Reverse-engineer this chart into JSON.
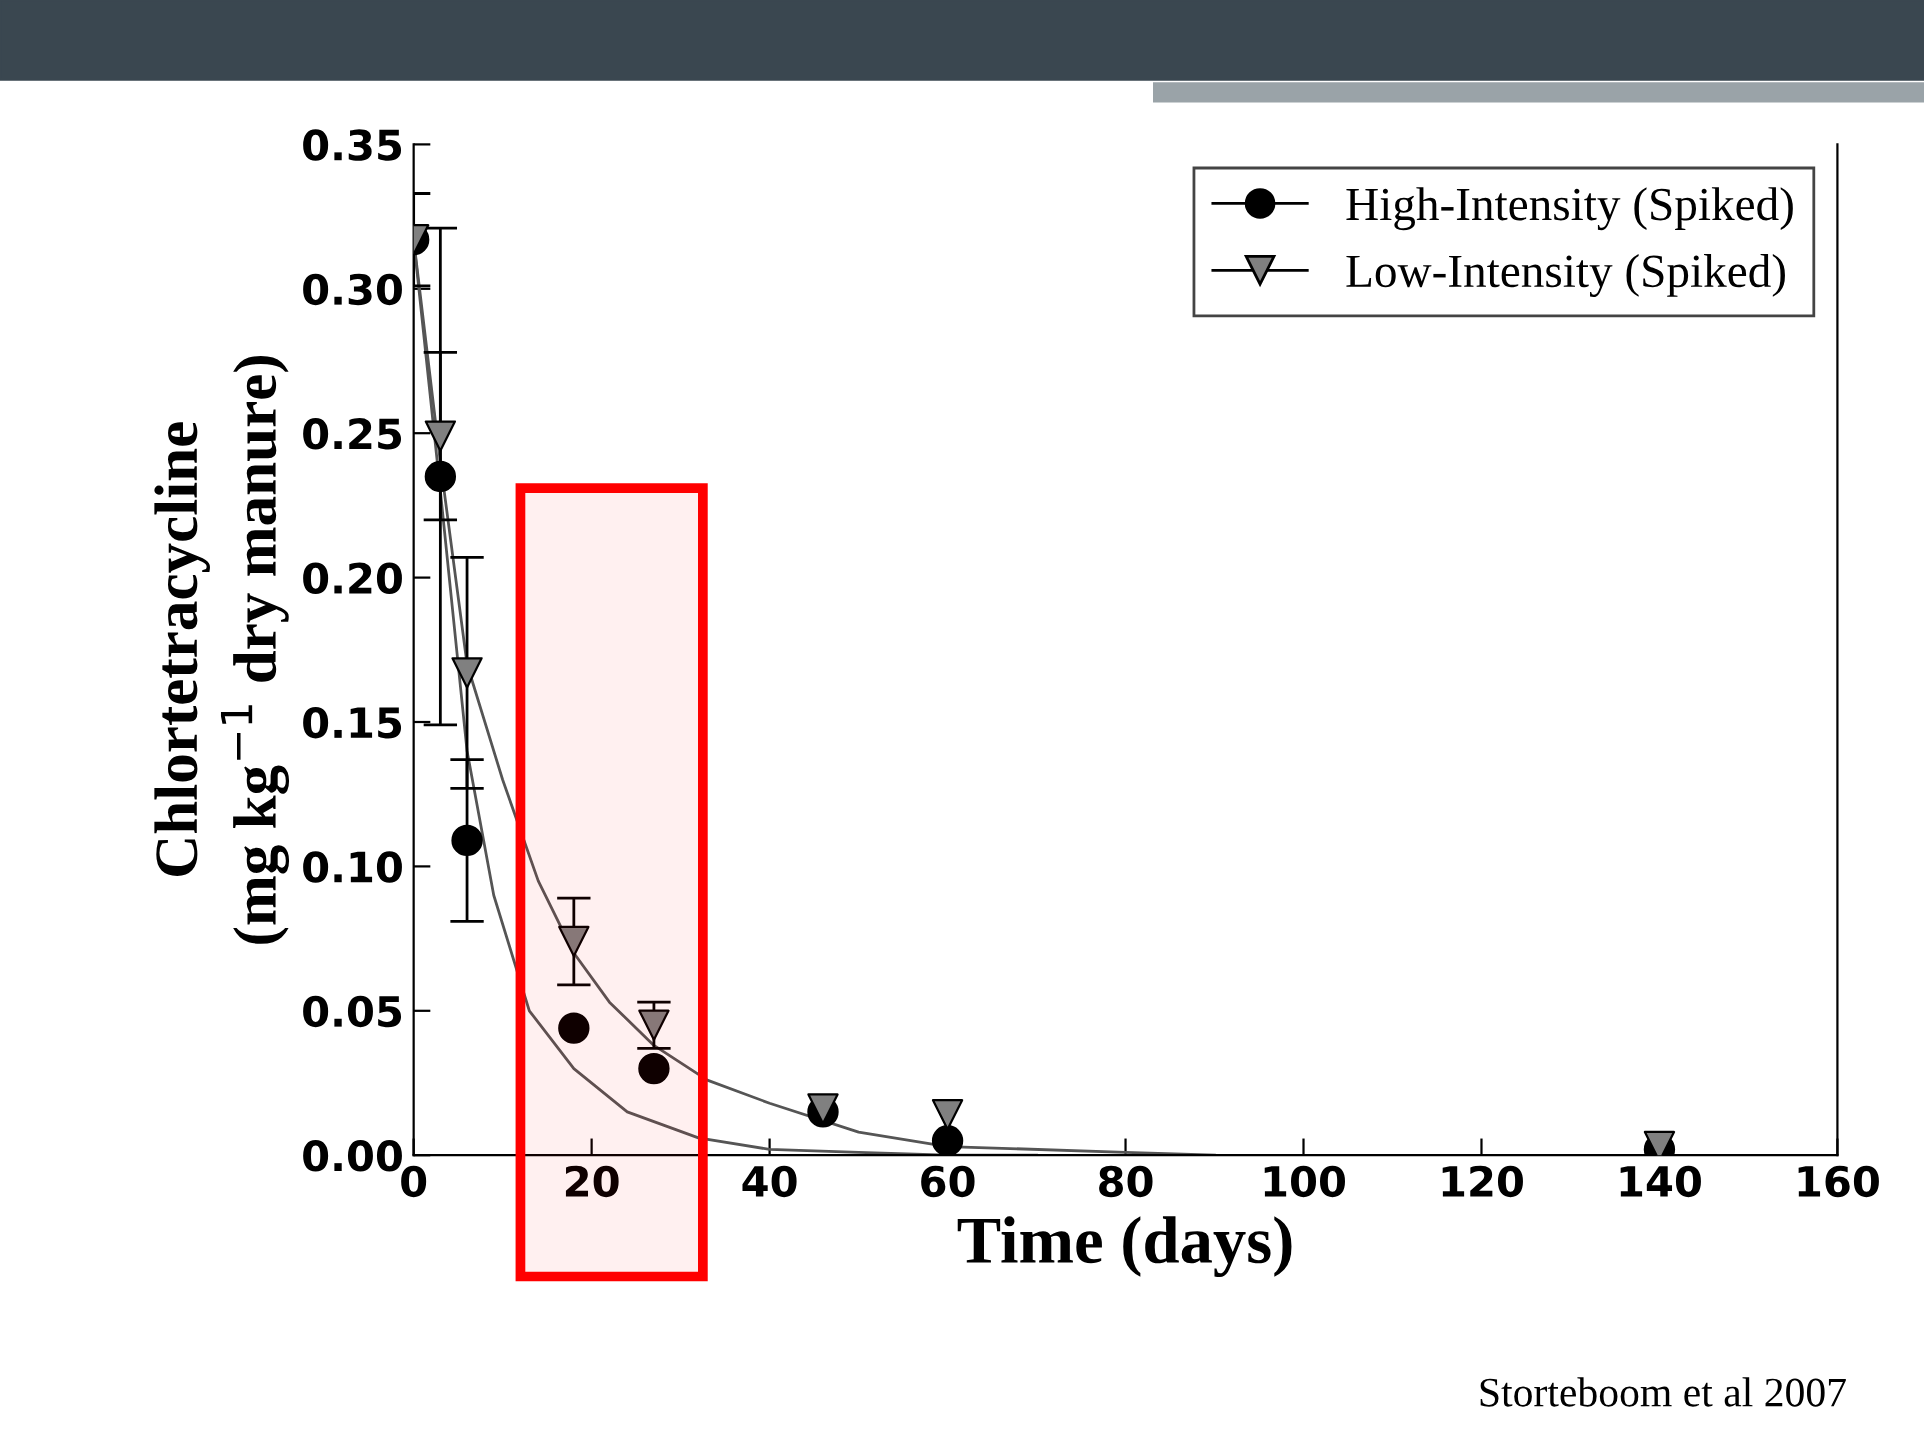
{
  "chart_data": {
    "type": "scatter",
    "xlabel": "Time (days)",
    "ylabel": "Chlortetracycline\n(mg kg$^{−1}$ dry manure)",
    "xlim": [
      0,
      160
    ],
    "xticks": [
      0,
      20,
      40,
      60,
      80,
      100,
      120,
      140,
      160
    ],
    "ylim": [
      0,
      0.35
    ],
    "yticks": [
      {
        "value": 0,
        "label": "0.00"
      },
      {
        "value": 0.05,
        "label": "0.05"
      },
      {
        "value": 0.1,
        "label": "0.10"
      },
      {
        "value": 0.15,
        "label": "0.15"
      },
      {
        "value": 0.2,
        "label": "0.20"
      },
      {
        "value": 0.25,
        "label": "0.25"
      },
      {
        "value": 0.3,
        "label": "0.30"
      },
      {
        "value": 0.35,
        "label": "0.35"
      }
    ],
    "grid": false,
    "legend": "top right",
    "series": [
      {
        "type": "line",
        "color": "#555555",
        "x": [
          0,
          3,
          6,
          9,
          13,
          18,
          24,
          32,
          40,
          50,
          60,
          70
        ],
        "values": [
          0.317,
          0.23,
          0.14,
          0.09,
          0.05,
          0.03,
          0.015,
          0.006,
          0.002,
          0.001,
          0,
          0
        ]
      },
      {
        "type": "line",
        "color": "#555555",
        "x": [
          0,
          3,
          6,
          10,
          14,
          18,
          22,
          27,
          33,
          40,
          50,
          60,
          80,
          90
        ],
        "values": [
          0.317,
          0.24,
          0.17,
          0.13,
          0.095,
          0.07,
          0.053,
          0.038,
          0.026,
          0.018,
          0.008,
          0.003,
          0.001,
          0
        ]
      },
      {
        "name": "High-Intensity (Spiked)",
        "marker": "circle",
        "color": "#000000",
        "x": [
          0,
          3,
          6,
          18,
          27,
          46,
          60,
          140
        ],
        "values": [
          0.317,
          0.235,
          0.109,
          0.044,
          0.03,
          0.015,
          0.005,
          0.002
        ],
        "errors": [
          0.016,
          0.086,
          0.028,
          null,
          null,
          null,
          null,
          null
        ]
      },
      {
        "name": "Low-Intensity (Spiked)",
        "marker": "triangle",
        "color": "#808080",
        "x": [
          0,
          3,
          6,
          18,
          27,
          46,
          60,
          140
        ],
        "values": [
          0.317,
          0.249,
          0.167,
          0.074,
          0.045,
          0.016,
          0.014,
          0.003
        ],
        "errors": [
          null,
          0.029,
          0.04,
          0.015,
          0.008,
          null,
          null,
          null
        ]
      }
    ],
    "bands": [
      {
        "axis": "x",
        "from": 12,
        "to": 32.5,
        "color": "#ff0000"
      }
    ],
    "annotations": [
      "Storteboom et al 2007"
    ]
  }
}
